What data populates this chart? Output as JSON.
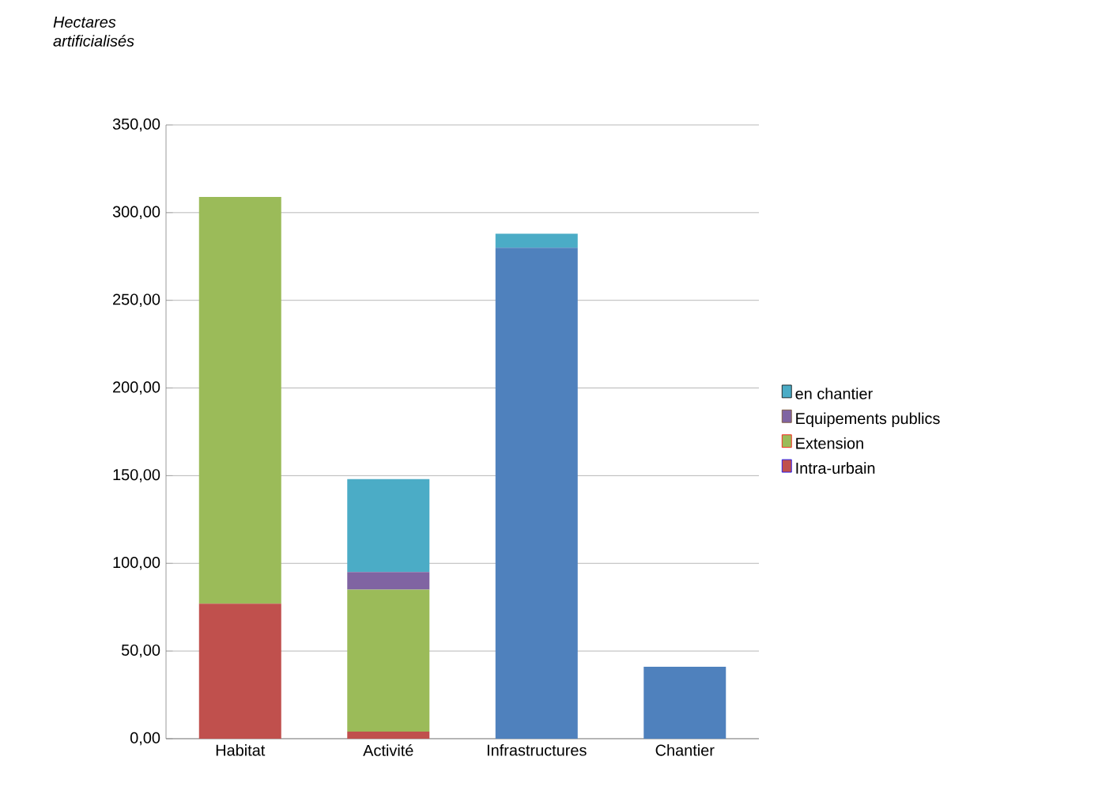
{
  "chart_data": {
    "type": "bar",
    "stacked": true,
    "ylabel": "Hectares artificialisés",
    "categories": [
      "Habitat",
      "Activité",
      "Infrastructures",
      "Chantier"
    ],
    "series": [
      {
        "name": "Intra-urbain",
        "color": "#c0504d",
        "values": [
          77,
          4,
          null,
          null
        ]
      },
      {
        "name": "Extension",
        "color": "#9bbb59",
        "values": [
          232,
          81,
          null,
          null
        ]
      },
      {
        "name": "Equipements publics",
        "color": "#8064a2",
        "values": [
          null,
          10,
          null,
          null
        ]
      },
      {
        "color": "#4f81bd",
        "values": [
          null,
          null,
          280,
          41
        ]
      },
      {
        "name": "en chantier",
        "color": "#4bacc6",
        "values": [
          null,
          53,
          8,
          null
        ]
      }
    ],
    "ylim": [
      0,
      350
    ],
    "yticks": [
      {
        "value": 0,
        "label": "0,00"
      },
      {
        "value": 50,
        "label": "50,00"
      },
      {
        "value": 100,
        "label": "100,00"
      },
      {
        "value": 150,
        "label": "150,00"
      },
      {
        "value": 200,
        "label": "200,00"
      },
      {
        "value": 250,
        "label": "250,00"
      },
      {
        "value": 300,
        "label": "300,00"
      },
      {
        "value": 350,
        "label": "350,00"
      }
    ],
    "grid": "y",
    "legend": "right"
  }
}
